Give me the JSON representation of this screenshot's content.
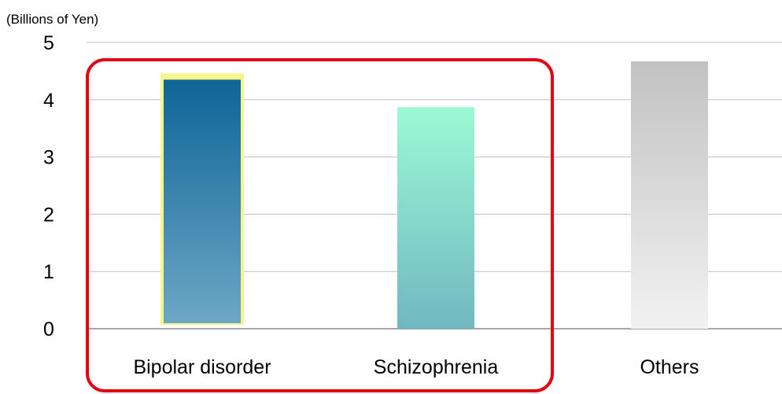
{
  "chart_data": {
    "type": "bar",
    "unit_label": "(Billions of Yen)",
    "categories": [
      "Bipolar disorder",
      "Schizophrenia",
      "Others"
    ],
    "values": [
      4.35,
      3.87,
      4.67
    ],
    "ylim": [
      0,
      5
    ],
    "yticks": [
      "0",
      "1",
      "2",
      "3",
      "4",
      "5"
    ],
    "grid": true,
    "legend": "none",
    "colors": {
      "bipolar_top": "#0d6597",
      "bipolar_bottom": "#6da7c5",
      "bipolar_glow": "#f6f58c",
      "schizo_top": "#9cf9d4",
      "schizo_bottom": "#70b8c1",
      "others_top": "#c2c2c2",
      "others_bottom": "#f2f2f2",
      "highlight_box": "#e50012",
      "gridline": "#bfbfbf",
      "baseline": "#8c8c8c"
    }
  }
}
